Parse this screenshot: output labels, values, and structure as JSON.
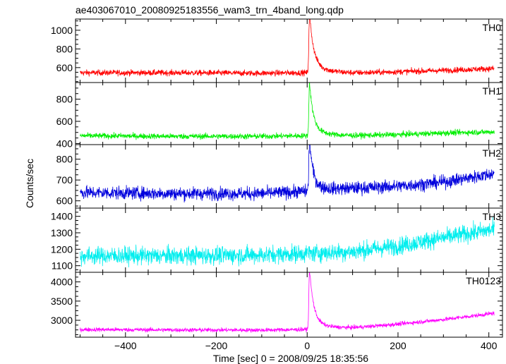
{
  "chart_data": {
    "type": "line",
    "title": "ae403067010_20080925183556_wam3_trn_4band_long.qdp",
    "xlabel": "Time [sec] 0 = 2008/09/25 18:35:56",
    "ylabel": "Counts/sec",
    "xlim": [
      -510,
      430
    ],
    "x_ticks": [
      -400,
      -200,
      0,
      200,
      400
    ],
    "x_tick_labels": [
      "−400",
      "−200",
      "0",
      "200",
      "400"
    ],
    "grid": false,
    "panels": [
      {
        "name": "TH0",
        "color": "#ff0000",
        "ylim": [
          440,
          1120
        ],
        "y_ticks": [
          600,
          800,
          1000
        ],
        "y_tick_labels": [
          "600",
          "800",
          "1000"
        ],
        "baseline": [
          [
            -500,
            545
          ],
          [
            -300,
            545
          ],
          [
            -100,
            540
          ],
          [
            -10,
            545
          ],
          [
            100,
            540
          ],
          [
            200,
            555
          ],
          [
            300,
            570
          ],
          [
            410,
            590
          ]
        ],
        "noise": 22,
        "peak": {
          "x": 5,
          "height": 560,
          "rise": 2,
          "decay": 9,
          "tail": 90,
          "tail_decay": 35
        }
      },
      {
        "name": "TH1",
        "color": "#00ee00",
        "ylim": [
          390,
          950
        ],
        "y_ticks": [
          400,
          600,
          800
        ],
        "y_tick_labels": [
          "400",
          "600",
          "800"
        ],
        "baseline": [
          [
            -500,
            470
          ],
          [
            -300,
            465
          ],
          [
            -100,
            465
          ],
          [
            -10,
            470
          ],
          [
            100,
            470
          ],
          [
            200,
            480
          ],
          [
            300,
            495
          ],
          [
            410,
            505
          ]
        ],
        "noise": 18,
        "peak": {
          "x": 5,
          "height": 430,
          "rise": 2,
          "decay": 8,
          "tail": 70,
          "tail_decay": 30
        }
      },
      {
        "name": "TH2",
        "color": "#0000dd",
        "ylim": [
          565,
          870
        ],
        "y_ticks": [
          600,
          700,
          800
        ],
        "y_tick_labels": [
          "600",
          "700",
          "800"
        ],
        "baseline": [
          [
            -500,
            640
          ],
          [
            -300,
            635
          ],
          [
            -100,
            635
          ],
          [
            -10,
            645
          ],
          [
            100,
            660
          ],
          [
            200,
            670
          ],
          [
            300,
            690
          ],
          [
            410,
            730
          ]
        ],
        "noise": 22,
        "peak": {
          "x": 5,
          "height": 220,
          "rise": 2,
          "decay": 7,
          "tail": 40,
          "tail_decay": 25
        }
      },
      {
        "name": "TH3",
        "color": "#00eeee",
        "ylim": [
          1060,
          1450
        ],
        "y_ticks": [
          1100,
          1200,
          1300,
          1400
        ],
        "y_tick_labels": [
          "1100",
          "1200",
          "1300",
          "1400"
        ],
        "baseline": [
          [
            -500,
            1160
          ],
          [
            -300,
            1160
          ],
          [
            -100,
            1165
          ],
          [
            0,
            1175
          ],
          [
            100,
            1185
          ],
          [
            200,
            1220
          ],
          [
            300,
            1270
          ],
          [
            410,
            1320
          ]
        ],
        "noise": 38,
        "peak": null
      },
      {
        "name": "TH0123",
        "color": "#ff00ff",
        "ylim": [
          2560,
          4250
        ],
        "y_ticks": [
          3000,
          3500,
          4000
        ],
        "y_tick_labels": [
          "3000",
          "3500",
          "4000"
        ],
        "baseline": [
          [
            -500,
            2760
          ],
          [
            -300,
            2750
          ],
          [
            -100,
            2745
          ],
          [
            -10,
            2760
          ],
          [
            100,
            2800
          ],
          [
            200,
            2900
          ],
          [
            300,
            3020
          ],
          [
            410,
            3180
          ]
        ],
        "noise": 38,
        "peak": {
          "x": 5,
          "height": 1400,
          "rise": 2,
          "decay": 9,
          "tail": 200,
          "tail_decay": 35
        }
      }
    ]
  }
}
